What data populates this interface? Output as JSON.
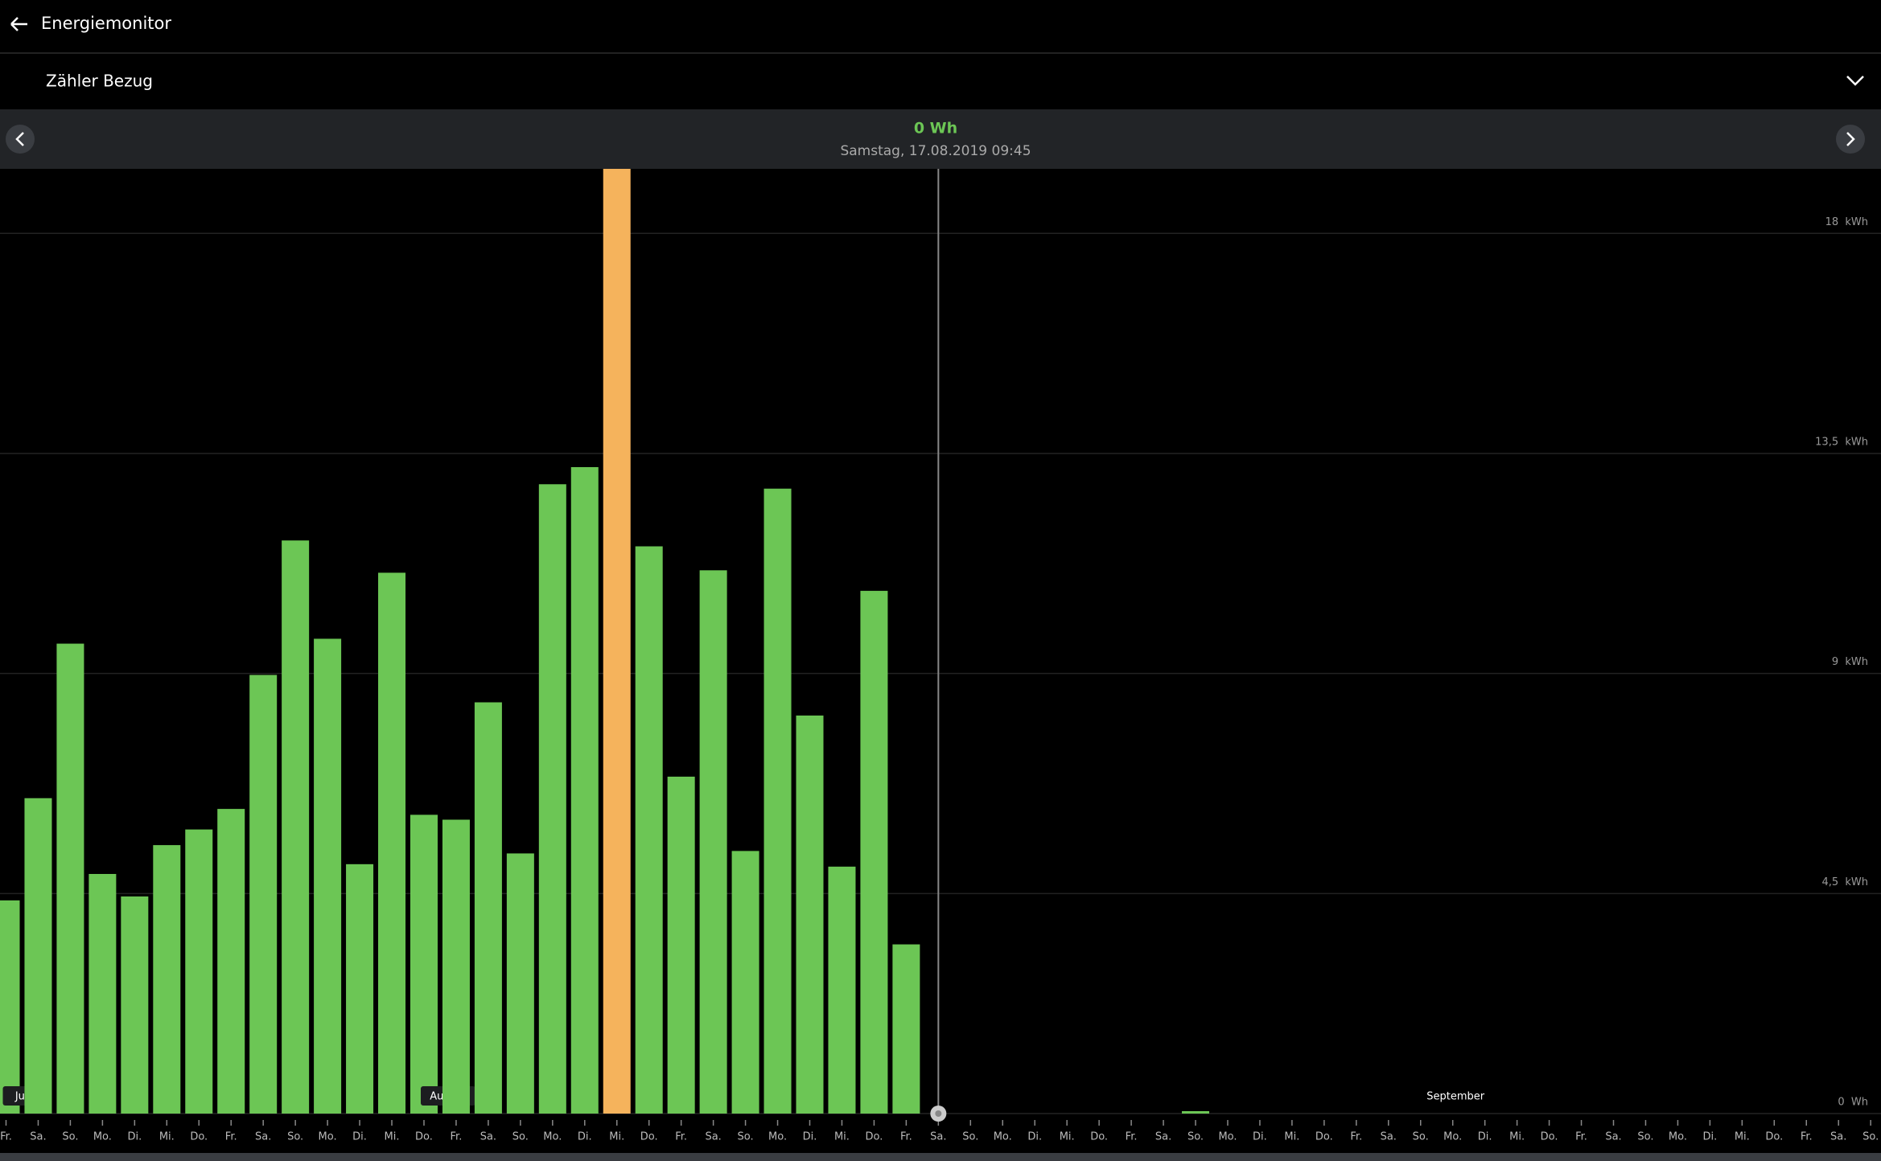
{
  "header": {
    "title": "Energiemonitor",
    "selector": "Zähler Bezug"
  },
  "readout": {
    "value": "0 Wh",
    "date": "Samstag, 17.08.2019 09:45"
  },
  "chart_data": {
    "type": "bar",
    "categories": [
      "Fr.",
      "Sa.",
      "So.",
      "Mo.",
      "Di.",
      "Mi.",
      "Do.",
      "Fr.",
      "Sa.",
      "So.",
      "Mo.",
      "Di.",
      "Mi.",
      "Do.",
      "Fr.",
      "Sa.",
      "So.",
      "Mo.",
      "Di.",
      "Mi.",
      "Do.",
      "Fr.",
      "Sa.",
      "So.",
      "Mo.",
      "Di.",
      "Mi.",
      "Do.",
      "Fr.",
      "Sa.",
      "So.",
      "Mo.",
      "Di.",
      "Mi.",
      "Do.",
      "Fr.",
      "Sa.",
      "So.",
      "Mo.",
      "Di.",
      "Mi.",
      "Do.",
      "Fr.",
      "Sa.",
      "So.",
      "Mo.",
      "Di.",
      "Mi.",
      "Do.",
      "Fr.",
      "Sa.",
      "So.",
      "Mo.",
      "Di.",
      "Mi.",
      "Do.",
      "Fr.",
      "Sa.",
      "So."
    ],
    "months": [
      "Juli",
      null,
      null,
      null,
      null,
      null,
      null,
      null,
      null,
      null,
      null,
      null,
      null,
      "August",
      null,
      null,
      null,
      null,
      null,
      null,
      null,
      null,
      null,
      null,
      null,
      null,
      null,
      null,
      null,
      null,
      null,
      null,
      null,
      null,
      null,
      null,
      null,
      null,
      null,
      null,
      null,
      null,
      null,
      null,
      "September",
      null,
      null,
      null,
      null,
      null,
      null,
      null,
      null,
      null,
      null,
      null,
      null,
      null,
      null
    ],
    "values": [
      4.36,
      6.45,
      9.61,
      4.9,
      4.44,
      5.49,
      5.81,
      6.23,
      8.97,
      11.72,
      9.71,
      5.1,
      11.06,
      6.11,
      6.01,
      8.41,
      5.32,
      12.87,
      13.22,
      19.32,
      11.6,
      6.89,
      11.11,
      5.37,
      12.78,
      8.14,
      5.05,
      10.69,
      3.46,
      0,
      null,
      null,
      null,
      null,
      null,
      null,
      null,
      0.05,
      null,
      null,
      null,
      null,
      null,
      null,
      null,
      null,
      null,
      null,
      null,
      null,
      null,
      null,
      null,
      null,
      null,
      null,
      null,
      null,
      null
    ],
    "color": "#6cc655",
    "highlight": {
      "index": 19,
      "color": "#f5b35c"
    },
    "cursor": 29,
    "ylim": [
      0,
      19.32
    ],
    "yticks": [
      {
        "value": 0,
        "label": "0  Wh"
      },
      {
        "value": 4.5,
        "label": "4,5  kWh"
      },
      {
        "value": 9,
        "label": "9  kWh"
      },
      {
        "value": 13.5,
        "label": "13,5  kWh"
      },
      {
        "value": 18,
        "label": "18  kWh"
      }
    ],
    "grid": true
  }
}
